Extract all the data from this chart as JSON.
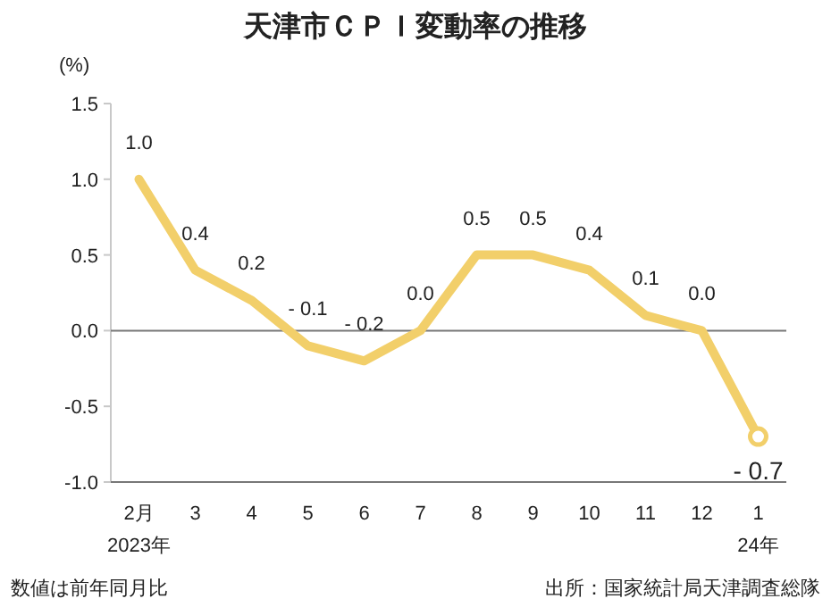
{
  "chart_data": {
    "type": "line",
    "title": "天津市ＣＰＩ変動率の推移",
    "ylabel": "(%)",
    "categories": [
      "2月\n2023年",
      "3",
      "4",
      "5",
      "6",
      "7",
      "8",
      "9",
      "10",
      "11",
      "12",
      "1\n24年"
    ],
    "series": [
      {
        "name": null,
        "color": "#f2cf6a",
        "values": [
          1.0,
          0.4,
          0.2,
          -0.1,
          -0.2,
          0.0,
          0.5,
          0.5,
          0.4,
          0.1,
          0.0,
          -0.7
        ],
        "value_labels": [
          "1.0",
          "0.4",
          "0.2",
          "- 0.1",
          "- 0.2",
          "0.0",
          "0.5",
          "0.5",
          "0.4",
          "0.1",
          "0.0",
          "- 0.7"
        ]
      },
      {
        "type": "scatter",
        "marker": "circle",
        "color": "#f2cf6a",
        "values": [
          null,
          null,
          null,
          null,
          null,
          null,
          null,
          null,
          null,
          null,
          null,
          -0.7
        ]
      }
    ],
    "ylim": [
      -1.0,
      1.5
    ],
    "yticks": [
      {
        "value": 1.5,
        "label": "1.5"
      },
      {
        "value": 1,
        "label": "1.0"
      },
      {
        "value": 0.5,
        "label": "0.5"
      },
      {
        "value": 0,
        "label": "0.0"
      },
      {
        "value": -0.5,
        "label": "-0.5"
      },
      {
        "value": -1,
        "label": "-1.0"
      }
    ],
    "ref_lines": [
      {
        "axis": "y",
        "value": 0,
        "label": null,
        "color": "#777777"
      }
    ],
    "grid": false,
    "annotations": [
      "数値は前年同月比",
      "出所：国家統計局天津調査総隊"
    ]
  }
}
